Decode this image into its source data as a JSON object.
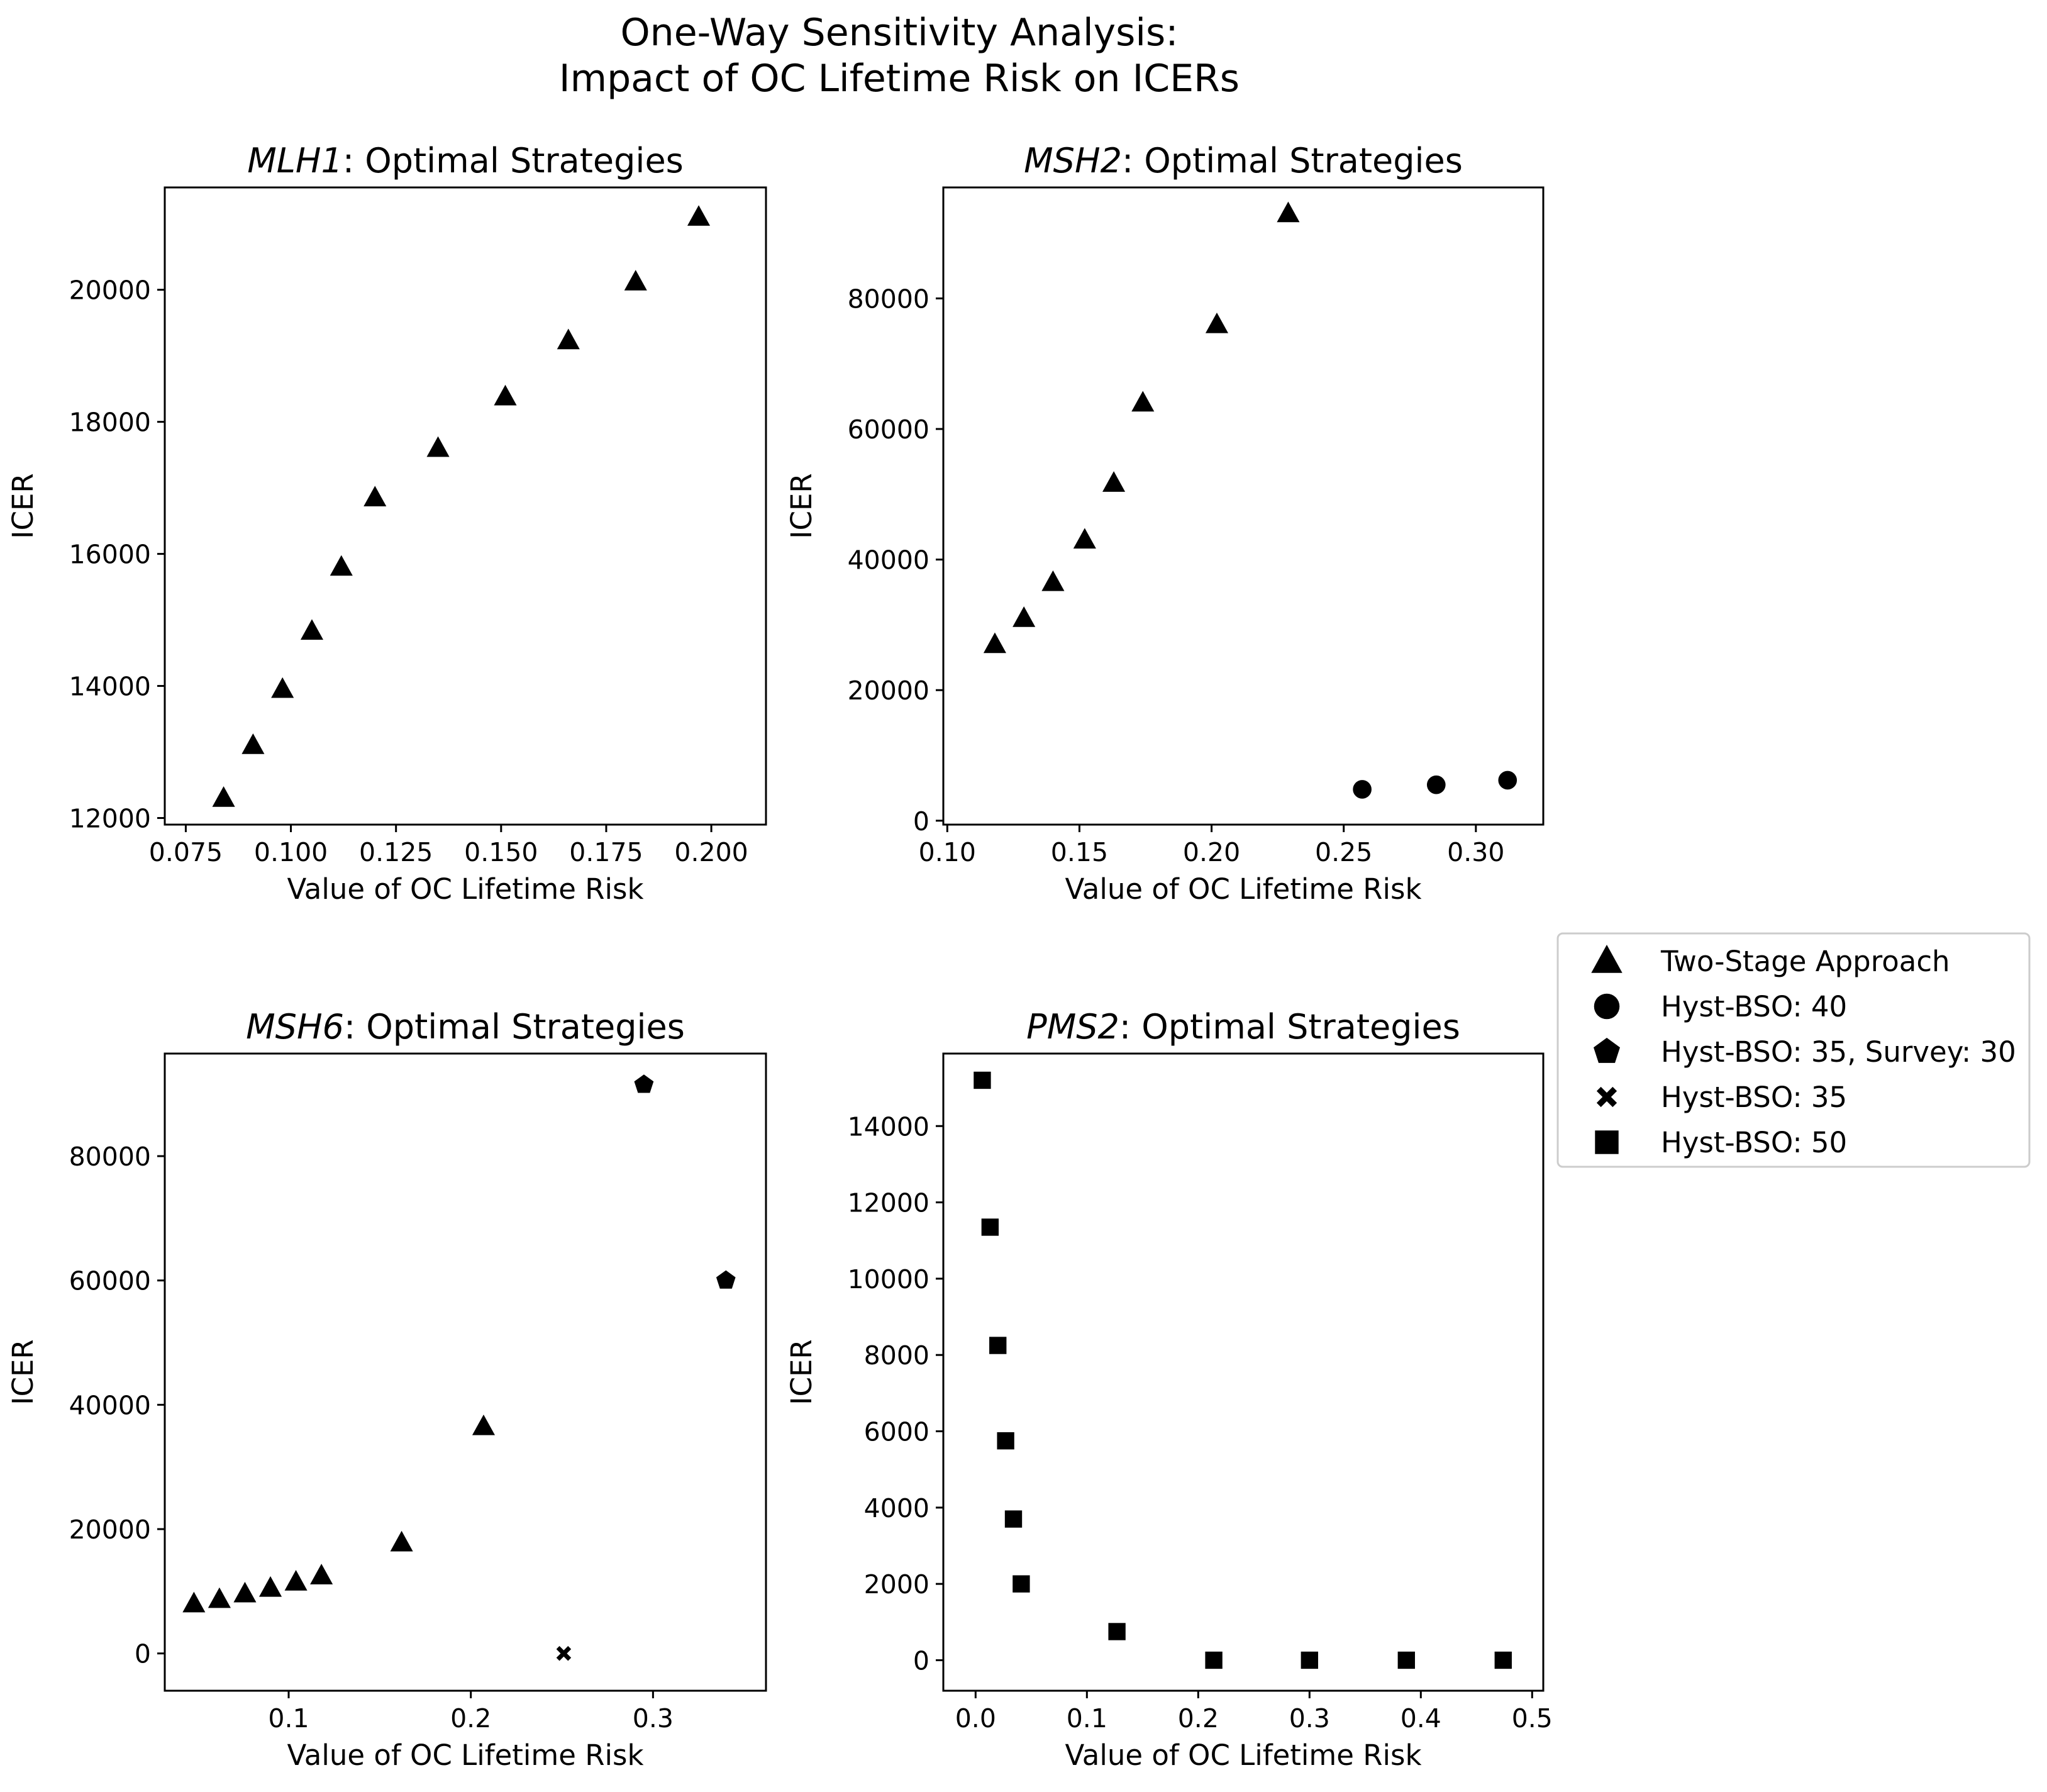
{
  "figure": {
    "title_line1": "One-Way Sensitivity Analysis:",
    "title_line2": "Impact of OC Lifetime Risk on ICERs"
  },
  "legend": {
    "placement": "right, between rows",
    "entries": [
      {
        "marker": "triangle",
        "label": "Two-Stage Approach"
      },
      {
        "marker": "circle",
        "label": "Hyst-BSO: 40"
      },
      {
        "marker": "pentagon",
        "label": "Hyst-BSO: 35, Survey: 30"
      },
      {
        "marker": "x",
        "label": "Hyst-BSO: 35"
      },
      {
        "marker": "square",
        "label": "Hyst-BSO: 50"
      }
    ]
  },
  "chart_data": [
    {
      "type": "scatter",
      "title_gene": "MLH1",
      "title_rest": ": Optimal Strategies",
      "xlabel": "Value of OC Lifetime Risk",
      "ylabel": "ICER",
      "xlim": [
        0.07,
        0.213
      ],
      "ylim": [
        11900,
        21550
      ],
      "xticks": [
        0.075,
        0.1,
        0.125,
        0.15,
        0.175,
        0.2
      ],
      "xtick_labels": [
        "0.075",
        "0.100",
        "0.125",
        "0.150",
        "0.175",
        "0.200"
      ],
      "yticks": [
        12000,
        14000,
        16000,
        18000,
        20000
      ],
      "ytick_labels": [
        "12000",
        "14000",
        "16000",
        "18000",
        "20000"
      ],
      "grid": false,
      "series": [
        {
          "name": "Two-Stage Approach",
          "marker": "triangle",
          "x": [
            0.084,
            0.091,
            0.098,
            0.105,
            0.112,
            0.12,
            0.135,
            0.151,
            0.166,
            0.182,
            0.197
          ],
          "y": [
            12300,
            13100,
            13950,
            14830,
            15800,
            16850,
            17600,
            18380,
            19230,
            20120,
            21100
          ]
        }
      ]
    },
    {
      "type": "scatter",
      "title_gene": "MSH2",
      "title_rest": ": Optimal Strategies",
      "xlabel": "Value of OC Lifetime Risk",
      "ylabel": "ICER",
      "xlim": [
        0.0985,
        0.3255
      ],
      "ylim": [
        -600,
        97000
      ],
      "xticks": [
        0.1,
        0.15,
        0.2,
        0.25,
        0.3
      ],
      "xtick_labels": [
        "0.10",
        "0.15",
        "0.20",
        "0.25",
        "0.30"
      ],
      "yticks": [
        0,
        20000,
        40000,
        60000,
        80000
      ],
      "ytick_labels": [
        "0",
        "20000",
        "40000",
        "60000",
        "80000"
      ],
      "grid": false,
      "series": [
        {
          "name": "Two-Stage Approach",
          "marker": "triangle",
          "x": [
            0.118,
            0.129,
            0.14,
            0.152,
            0.163,
            0.174,
            0.202,
            0.229
          ],
          "y": [
            27000,
            31000,
            36500,
            43000,
            51700,
            64000,
            76000,
            93000
          ]
        },
        {
          "name": "Hyst-BSO: 40",
          "marker": "circle",
          "x": [
            0.257,
            0.285,
            0.312
          ],
          "y": [
            4800,
            5500,
            6200
          ]
        }
      ]
    },
    {
      "type": "scatter",
      "title_gene": "MSH6",
      "title_rest": ": Optimal Strategies",
      "xlabel": "Value of OC Lifetime Risk",
      "ylabel": "ICER",
      "xlim": [
        0.032,
        0.362
      ],
      "ylim": [
        -6000,
        96500
      ],
      "xticks": [
        0.1,
        0.2,
        0.3
      ],
      "xtick_labels": [
        "0.1",
        "0.2",
        "0.3"
      ],
      "yticks": [
        0,
        20000,
        40000,
        60000,
        80000
      ],
      "ytick_labels": [
        "0",
        "20000",
        "40000",
        "60000",
        "80000"
      ],
      "grid": false,
      "series": [
        {
          "name": "Two-Stage Approach",
          "marker": "triangle",
          "x": [
            0.048,
            0.062,
            0.076,
            0.09,
            0.104,
            0.118,
            0.162,
            0.207
          ],
          "y": [
            8000,
            8700,
            9600,
            10500,
            11500,
            12500,
            17800,
            36500
          ]
        },
        {
          "name": "Hyst-BSO: 35, Survey: 30",
          "marker": "pentagon",
          "x": [
            0.295,
            0.34
          ],
          "y": [
            91500,
            60000
          ]
        },
        {
          "name": "Hyst-BSO: 35",
          "marker": "x",
          "x": [
            0.251
          ],
          "y": [
            0
          ]
        }
      ]
    },
    {
      "type": "scatter",
      "title_gene": "PMS2",
      "title_rest": ": Optimal Strategies",
      "xlabel": "Value of OC Lifetime Risk",
      "ylabel": "ICER",
      "xlim": [
        -0.029,
        0.51
      ],
      "ylim": [
        -800,
        15900
      ],
      "xticks": [
        0,
        0.1,
        0.2,
        0.3,
        0.4,
        0.5
      ],
      "xtick_labels": [
        "0.0",
        "0.1",
        "0.2",
        "0.3",
        "0.4",
        "0.5"
      ],
      "yticks": [
        0,
        2000,
        4000,
        6000,
        8000,
        10000,
        12000,
        14000
      ],
      "ytick_labels": [
        "0",
        "2000",
        "4000",
        "6000",
        "8000",
        "10000",
        "12000",
        "14000"
      ],
      "grid": false,
      "series": [
        {
          "name": "Hyst-BSO: 50",
          "marker": "square",
          "x": [
            0.006,
            0.013,
            0.02,
            0.027,
            0.034,
            0.041,
            0.127,
            0.214,
            0.3,
            0.387,
            0.474
          ],
          "y": [
            15200,
            11350,
            8250,
            5750,
            3700,
            2000,
            750,
            0,
            0,
            0,
            0
          ]
        }
      ]
    }
  ]
}
